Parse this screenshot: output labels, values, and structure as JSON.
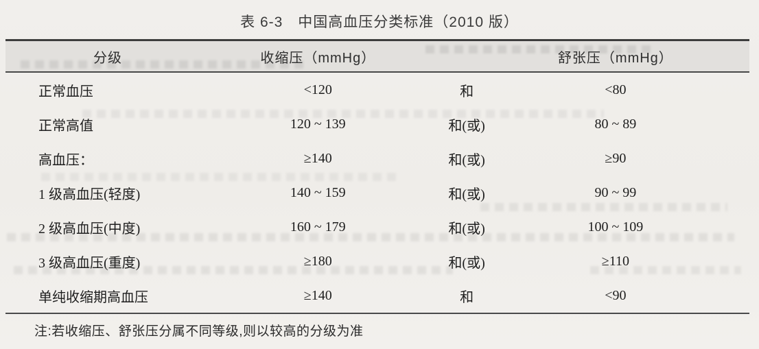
{
  "page": {
    "title": "表 6-3　中国高血压分类标准（2010 版）",
    "note": "注:若收缩压、舒张压分属不同等级,则以较高的分级为准"
  },
  "table": {
    "columns": [
      "分级",
      "收缩压（mmHg）",
      "",
      "舒张压（mmHg）"
    ],
    "rows": [
      {
        "grade": "正常血压",
        "systolic": "<120",
        "conjunction": "和",
        "diastolic": "<80"
      },
      {
        "grade": "正常高值",
        "systolic": "120 ~ 139",
        "conjunction": "和(或)",
        "diastolic": "80 ~ 89"
      },
      {
        "grade": "高血压：",
        "systolic": "≥140",
        "conjunction": "和(或)",
        "diastolic": "≥90"
      },
      {
        "grade": "1 级高血压(轻度)",
        "systolic": "140 ~ 159",
        "conjunction": "和(或)",
        "diastolic": "90 ~ 99"
      },
      {
        "grade": "2 级高血压(中度)",
        "systolic": "160 ~ 179",
        "conjunction": "和(或)",
        "diastolic": "100 ~ 109"
      },
      {
        "grade": "3 级高血压(重度)",
        "systolic": "≥180",
        "conjunction": "和(或)",
        "diastolic": "≥110"
      },
      {
        "grade": "单纯收缩期高血压",
        "systolic": "≥140",
        "conjunction": "和",
        "diastolic": "<90"
      }
    ]
  },
  "colors": {
    "paper_bg": "#f0eeeb",
    "header_band_bg": "#e2e0dd",
    "rule_color": "#3d3d3d",
    "text_color": "#1e1e1e"
  }
}
